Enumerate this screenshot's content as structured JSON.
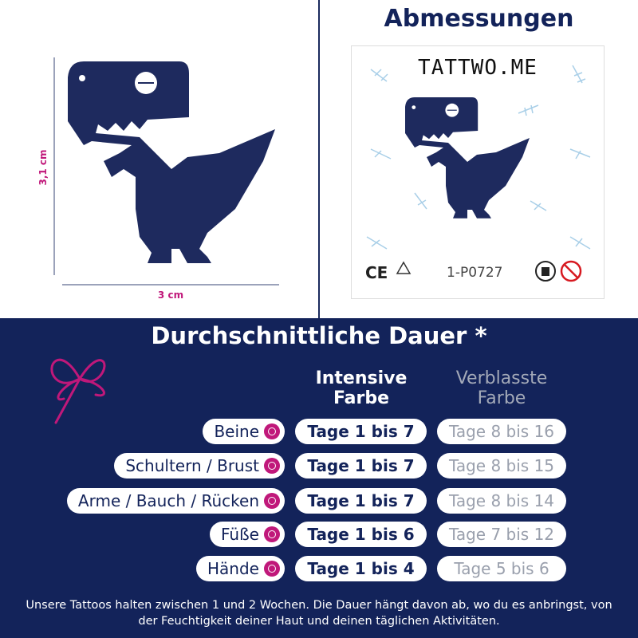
{
  "dimensions": {
    "height_label": "3,1 cm",
    "width_label": "3 cm"
  },
  "preview": {
    "title": "Abmessungen",
    "brand": "TATTWO.ME",
    "ce_mark": "CE",
    "product_code": "1-P0727"
  },
  "duration": {
    "title": "Durchschnittliche Dauer *",
    "columns": [
      "Intensive Farbe",
      "Verblasste Farbe"
    ],
    "rows": [
      {
        "area": "Beine",
        "intensive": "Tage 1 bis 7",
        "faded": "Tage 8 bis 16"
      },
      {
        "area": "Schultern / Brust",
        "intensive": "Tage 1 bis 7",
        "faded": "Tage 8 bis 15"
      },
      {
        "area": "Arme / Bauch / Rücken",
        "intensive": "Tage 1 bis 7",
        "faded": "Tage 8 bis 14"
      },
      {
        "area": "Füße",
        "intensive": "Tage 1 bis 6",
        "faded": "Tage 7 bis 12"
      },
      {
        "area": "Hände",
        "intensive": "Tage 1 bis 4",
        "faded": "Tage 5 bis 6"
      }
    ],
    "footnote": "Unsere Tattoos halten zwischen 1 und 2 Wochen. Die Dauer hängt davon ab, wo du es anbringst, von der Feuchtigkeit deiner Haut und deinen täglichen Aktivitäten."
  }
}
